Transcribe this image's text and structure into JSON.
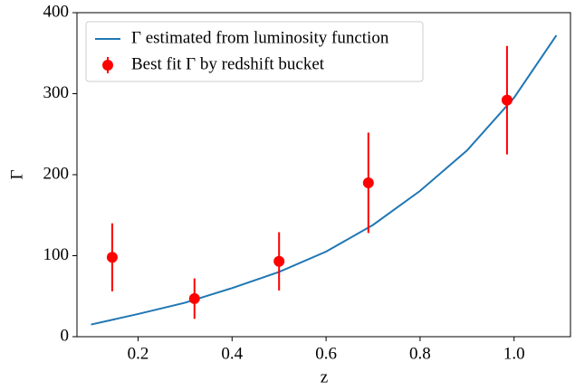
{
  "chart_data": {
    "type": "line",
    "xlabel": "z",
    "ylabel": "Γ",
    "xlim": [
      0.07,
      1.12
    ],
    "ylim": [
      0,
      400
    ],
    "xticks": [
      0.2,
      0.4,
      0.6,
      0.8,
      {
        "value": 1,
        "label": "1.0"
      }
    ],
    "yticks": [
      0,
      100,
      200,
      300,
      400
    ],
    "legend": "upper left",
    "series": [
      {
        "name": "Γ estimated from luminosity function",
        "color": "#1f77b4",
        "x": [
          0.1,
          0.2,
          0.3,
          0.4,
          0.5,
          0.6,
          0.7,
          0.8,
          0.9,
          1.0,
          1.09
        ],
        "values": [
          15,
          28,
          42,
          60,
          80,
          105,
          138,
          180,
          230,
          295,
          372
        ]
      },
      {
        "name": "Best fit Γ by redshift bucket",
        "color": "#ff0000",
        "x": [
          0.145,
          0.32,
          0.5,
          0.69,
          0.985
        ],
        "values": [
          98,
          47,
          93,
          190,
          292
        ],
        "errors": [
          42,
          25,
          36,
          62,
          67
        ]
      }
    ]
  }
}
